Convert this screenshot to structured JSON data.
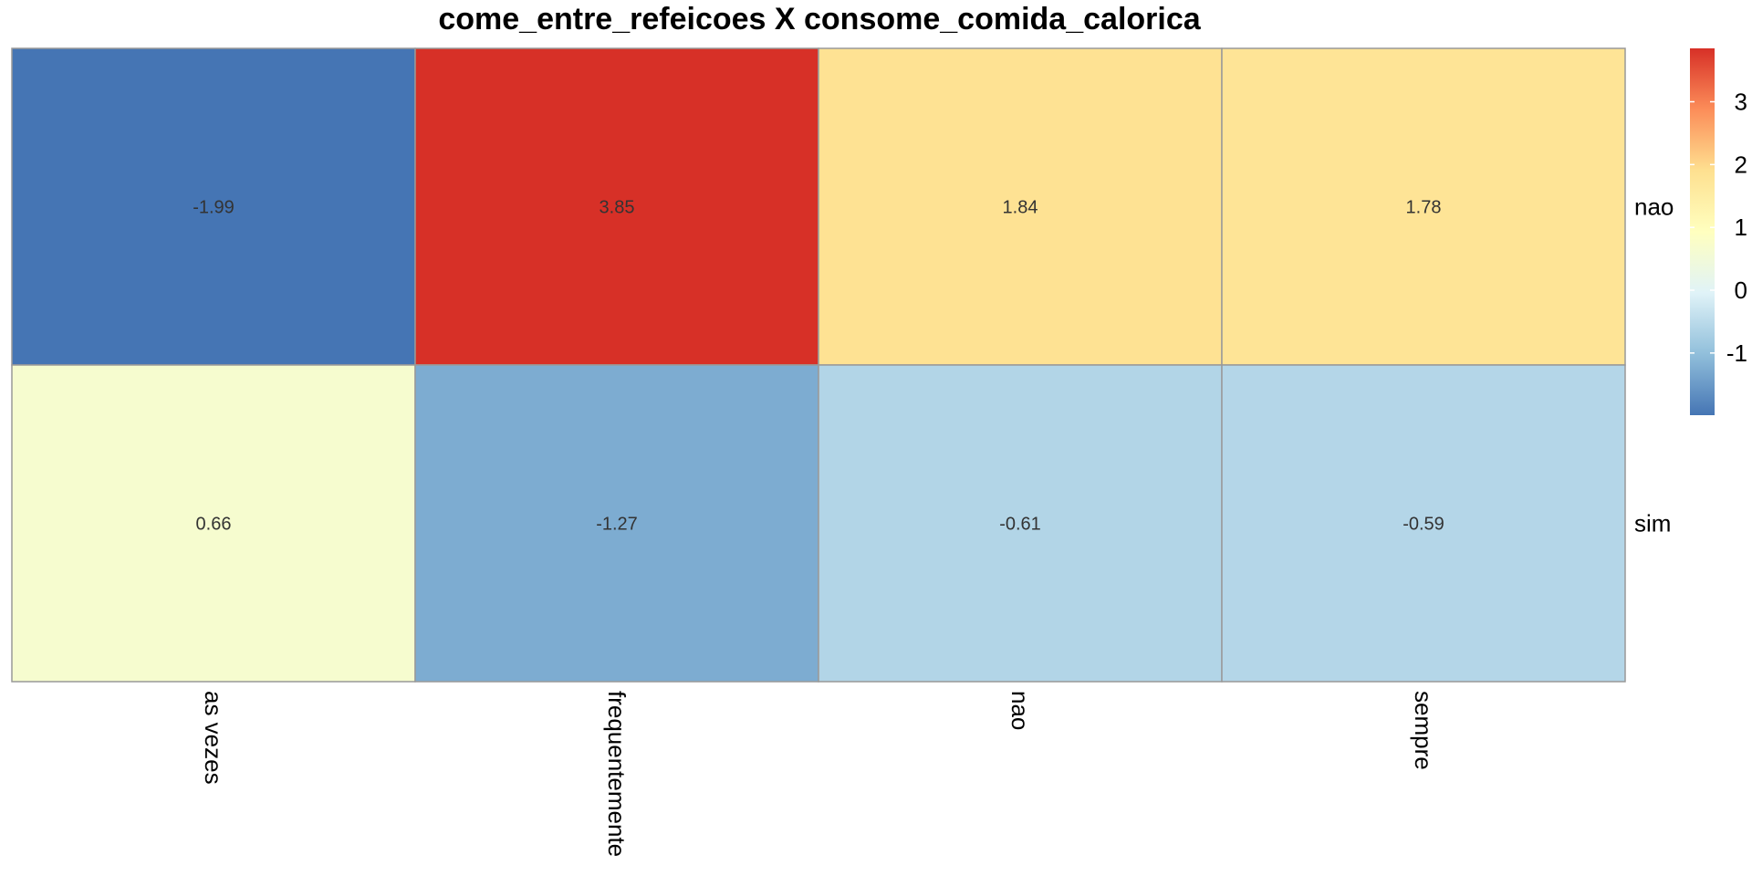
{
  "chart_data": {
    "type": "heatmap",
    "title": "come_entre_refeicoes X consome_comida_calorica",
    "columns": [
      "as vezes",
      "frequentemente",
      "nao",
      "sempre"
    ],
    "rows": [
      "nao",
      "sim"
    ],
    "values": [
      [
        -1.99,
        3.85,
        1.84,
        1.78
      ],
      [
        0.66,
        -1.27,
        -0.61,
        -0.59
      ]
    ],
    "cell_labels": [
      [
        "-1.99",
        "3.85",
        "1.84",
        "1.78"
      ],
      [
        "0.66",
        "-1.27",
        "-0.61",
        "-0.59"
      ]
    ],
    "legend": {
      "placement": "right",
      "range": [
        -1.99,
        3.85
      ],
      "ticks": [
        -1,
        0,
        1,
        2,
        3
      ],
      "tick_labels": [
        "-1",
        "0",
        "1",
        "2",
        "3"
      ]
    },
    "color_scale": [
      "#4575b4",
      "#91bfdb",
      "#e0f3f8",
      "#ffffbf",
      "#fee090",
      "#fc8d59",
      "#d73027"
    ],
    "grid_color": "#999999"
  }
}
